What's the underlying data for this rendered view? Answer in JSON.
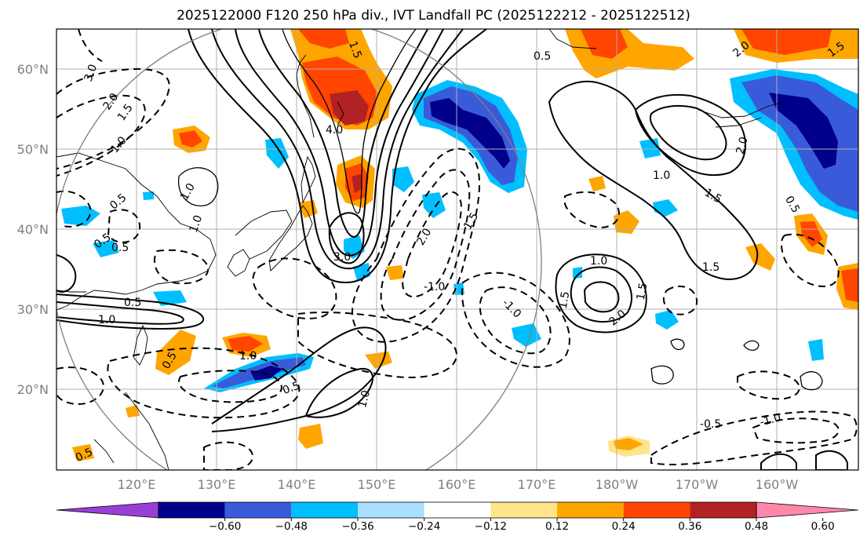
{
  "title": "2025122000 F120 250 hPa div., IVT Landfall PC (2025122212 - 2025122512)",
  "map": {
    "lat_labels": [
      "60°N",
      "50°N",
      "40°N",
      "30°N",
      "20°N"
    ],
    "lon_labels": [
      "120°E",
      "130°E",
      "140°E",
      "150°E",
      "160°E",
      "170°E",
      "180°W",
      "170°W",
      "160°W"
    ],
    "contour_labels": [
      "3.0",
      "2.0",
      "1.5",
      "1.0",
      "0.5",
      "0.5",
      "0.5",
      "1.5",
      "4.0",
      "3.0",
      "2.0",
      "1.5",
      "-1.0",
      "-1.0",
      "1.0",
      "0.5",
      "1.0",
      "1.0",
      "0.5",
      "1.0",
      "1.5",
      "1.0",
      "1.5",
      "2.0",
      "1.5",
      "2.0",
      "0.5",
      "1.5",
      "1.0",
      "2.0",
      "1.5",
      "0.5",
      "-0.5",
      "-1.0",
      "0.5",
      "0.5",
      "1.0"
    ],
    "grid_color": "#b0b0b0",
    "circle_color": "#808080"
  },
  "colorbar": {
    "ticks": [
      "−0.60",
      "−0.48",
      "−0.36",
      "−0.24",
      "−0.12",
      "0.12",
      "0.24",
      "0.36",
      "0.48",
      "0.60"
    ],
    "colors": [
      "#9a3fd6",
      "#00008b",
      "#3a5bd9",
      "#00bfff",
      "#aadfff",
      "#ffffff",
      "#ffe58a",
      "#ffa500",
      "#ff4500",
      "#b22222",
      "#ff88aa"
    ]
  }
}
